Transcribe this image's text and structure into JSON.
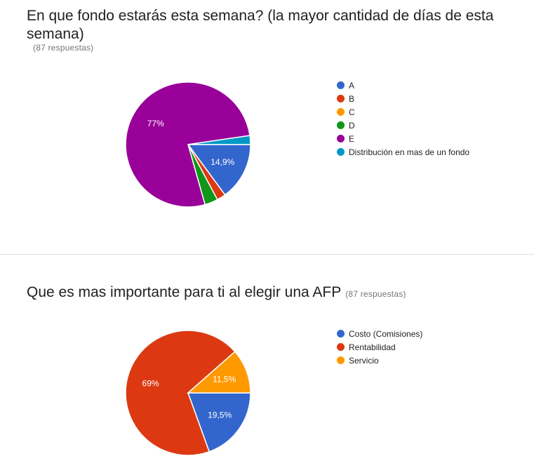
{
  "q1": {
    "title": "En que fondo estarás esta semana? (la mayor cantidad de días de esta semana)",
    "count": "(87 respuestas)"
  },
  "q2": {
    "title": "Que es mas importante para ti al elegir una AFP",
    "count": "(87 respuestas)"
  },
  "chart_data": [
    {
      "type": "pie",
      "title": "En que fondo estarás esta semana? (la mayor cantidad de días de esta semana)",
      "categories": [
        "A",
        "B",
        "C",
        "D",
        "E",
        "Distribución en mas de un fondo"
      ],
      "values": [
        14.9,
        2.3,
        0,
        3.4,
        77,
        2.3
      ],
      "data_labels": [
        "14,9%",
        "",
        "",
        "",
        "77%",
        ""
      ],
      "colors": [
        "#3366cc",
        "#dc3912",
        "#ff9900",
        "#109618",
        "#990099",
        "#0099c6"
      ],
      "legend": "right"
    },
    {
      "type": "pie",
      "title": "Que es mas importante para ti al elegir una AFP",
      "categories": [
        "Costo (Comisiones)",
        "Rentabilidad",
        "Servicio"
      ],
      "values": [
        19.5,
        69,
        11.5
      ],
      "data_labels": [
        "19,5%",
        "69%",
        "11,5%"
      ],
      "colors": [
        "#3366cc",
        "#dc3912",
        "#ff9900"
      ],
      "legend": "right"
    }
  ]
}
